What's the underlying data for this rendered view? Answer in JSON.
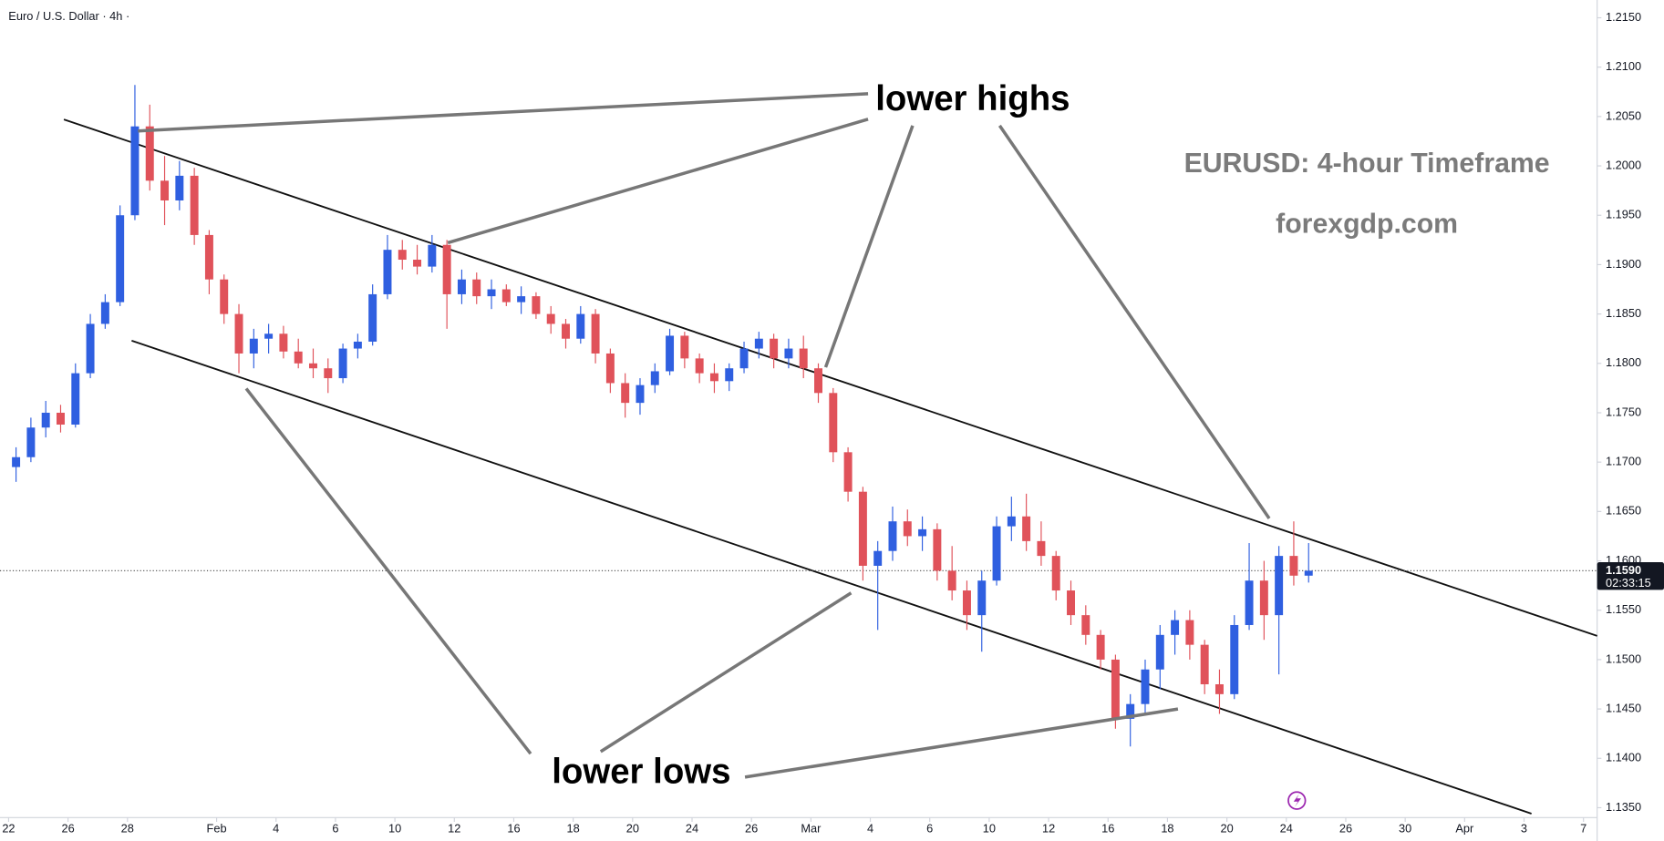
{
  "chart_data": {
    "type": "candlestick",
    "title": "Euro / U.S. Dollar · 4h ·",
    "annotations": [
      "lower highs",
      "lower lows",
      "EURUSD: 4-hour Timeframe",
      "forexgdp.com"
    ],
    "up_color": "#2f5fe0",
    "down_color": "#e0525a",
    "last_price": {
      "value": 1.159,
      "label": "1.1590"
    },
    "countdown": "02:33:15",
    "xlim": [
      -0.29,
      53.46
    ],
    "ylim": [
      1.134,
      1.2168
    ],
    "xticks": [
      {
        "value": 0,
        "label": "22"
      },
      {
        "value": 2,
        "label": "26"
      },
      {
        "value": 4,
        "label": "28"
      },
      {
        "value": 7,
        "label": "Feb"
      },
      {
        "value": 9,
        "label": "4"
      },
      {
        "value": 11,
        "label": "6"
      },
      {
        "value": 13,
        "label": "10"
      },
      {
        "value": 15,
        "label": "12"
      },
      {
        "value": 17,
        "label": "16"
      },
      {
        "value": 19,
        "label": "18"
      },
      {
        "value": 21,
        "label": "20"
      },
      {
        "value": 23,
        "label": "24"
      },
      {
        "value": 25,
        "label": "26"
      },
      {
        "value": 27,
        "label": "Mar"
      },
      {
        "value": 29,
        "label": "4"
      },
      {
        "value": 31,
        "label": "6"
      },
      {
        "value": 33,
        "label": "10"
      },
      {
        "value": 35,
        "label": "12"
      },
      {
        "value": 37,
        "label": "16"
      },
      {
        "value": 39,
        "label": "18"
      },
      {
        "value": 41,
        "label": "20"
      },
      {
        "value": 43,
        "label": "24"
      },
      {
        "value": 45,
        "label": "26"
      },
      {
        "value": 47,
        "label": "30"
      },
      {
        "value": 49,
        "label": "Apr"
      },
      {
        "value": 51,
        "label": "3"
      },
      {
        "value": 53,
        "label": "7"
      }
    ],
    "yticks": [
      {
        "value": 1.135,
        "label": "1.1350"
      },
      {
        "value": 1.14,
        "label": "1.1400"
      },
      {
        "value": 1.145,
        "label": "1.1450"
      },
      {
        "value": 1.15,
        "label": "1.1500"
      },
      {
        "value": 1.155,
        "label": "1.1550"
      },
      {
        "value": 1.16,
        "label": "1.1600"
      },
      {
        "value": 1.165,
        "label": "1.1650"
      },
      {
        "value": 1.17,
        "label": "1.1700"
      },
      {
        "value": 1.175,
        "label": "1.1750"
      },
      {
        "value": 1.18,
        "label": "1.1800"
      },
      {
        "value": 1.185,
        "label": "1.1850"
      },
      {
        "value": 1.19,
        "label": "1.1900"
      },
      {
        "value": 1.195,
        "label": "1.1950"
      },
      {
        "value": 1.2,
        "label": "1.2000"
      },
      {
        "value": 1.205,
        "label": "1.2050"
      },
      {
        "value": 1.21,
        "label": "1.2100"
      },
      {
        "value": 1.215,
        "label": "1.2150"
      }
    ],
    "trendlines": [
      {
        "x": [
          1.86,
          53.46
        ],
        "y": [
          1.2047,
          1.1524
        ]
      },
      {
        "x": [
          4.14,
          51.25
        ],
        "y": [
          1.1823,
          1.1344
        ]
      }
    ],
    "x": [
      0.25,
      0.75,
      1.25,
      1.75,
      2.25,
      2.75,
      3.25,
      3.75,
      4.25,
      4.75,
      5.25,
      5.75,
      6.25,
      6.75,
      7.25,
      7.75,
      8.25,
      8.75,
      9.25,
      9.75,
      10.25,
      10.75,
      11.25,
      11.75,
      12.25,
      12.75,
      13.25,
      13.75,
      14.25,
      14.75,
      15.25,
      15.75,
      16.25,
      16.75,
      17.25,
      17.75,
      18.25,
      18.75,
      19.25,
      19.75,
      20.25,
      20.75,
      21.25,
      21.75,
      22.25,
      22.75,
      23.25,
      23.75,
      24.25,
      24.75,
      25.25,
      25.75,
      26.25,
      26.75,
      27.25,
      27.75,
      28.25,
      28.75,
      29.25,
      29.75,
      30.25,
      30.75,
      31.25,
      31.75,
      32.25,
      32.75,
      33.25,
      33.75,
      34.25,
      34.75,
      35.25,
      35.75,
      36.25,
      36.75,
      37.25,
      37.75,
      38.25,
      38.75,
      39.25,
      39.75,
      40.25,
      40.75,
      41.25,
      41.75,
      42.25,
      42.75,
      43.25,
      43.75
    ],
    "ohlc": [
      [
        1.1695,
        1.1715,
        1.168,
        1.1705
      ],
      [
        1.1705,
        1.1745,
        1.17,
        1.1735
      ],
      [
        1.1735,
        1.1762,
        1.1725,
        1.175
      ],
      [
        1.175,
        1.1758,
        1.173,
        1.1738
      ],
      [
        1.1738,
        1.18,
        1.1735,
        1.179
      ],
      [
        1.179,
        1.185,
        1.1785,
        1.184
      ],
      [
        1.184,
        1.187,
        1.1835,
        1.1862
      ],
      [
        1.1862,
        1.196,
        1.1858,
        1.195
      ],
      [
        1.195,
        1.2082,
        1.1945,
        1.204
      ],
      [
        1.204,
        1.2062,
        1.1975,
        1.1985
      ],
      [
        1.1985,
        1.201,
        1.194,
        1.1965
      ],
      [
        1.1965,
        1.2005,
        1.1955,
        1.199
      ],
      [
        1.199,
        1.1998,
        1.192,
        1.193
      ],
      [
        1.193,
        1.1935,
        1.187,
        1.1885
      ],
      [
        1.1885,
        1.189,
        1.184,
        1.185
      ],
      [
        1.185,
        1.186,
        1.179,
        1.181
      ],
      [
        1.181,
        1.1835,
        1.1795,
        1.1825
      ],
      [
        1.1825,
        1.184,
        1.181,
        1.183
      ],
      [
        1.183,
        1.1838,
        1.1805,
        1.1812
      ],
      [
        1.1812,
        1.1825,
        1.1795,
        1.18
      ],
      [
        1.18,
        1.1815,
        1.1785,
        1.1795
      ],
      [
        1.1795,
        1.1805,
        1.177,
        1.1785
      ],
      [
        1.1785,
        1.182,
        1.178,
        1.1815
      ],
      [
        1.1815,
        1.183,
        1.1805,
        1.1822
      ],
      [
        1.1822,
        1.188,
        1.1818,
        1.187
      ],
      [
        1.187,
        1.193,
        1.1865,
        1.1915
      ],
      [
        1.1915,
        1.1925,
        1.1895,
        1.1905
      ],
      [
        1.1905,
        1.192,
        1.189,
        1.1898
      ],
      [
        1.1898,
        1.193,
        1.1892,
        1.192
      ],
      [
        1.192,
        1.1925,
        1.1835,
        1.187
      ],
      [
        1.187,
        1.1895,
        1.186,
        1.1885
      ],
      [
        1.1885,
        1.1892,
        1.186,
        1.1868
      ],
      [
        1.1868,
        1.1885,
        1.1855,
        1.1875
      ],
      [
        1.1875,
        1.188,
        1.1858,
        1.1862
      ],
      [
        1.1862,
        1.1878,
        1.185,
        1.1868
      ],
      [
        1.1868,
        1.1872,
        1.1845,
        1.185
      ],
      [
        1.185,
        1.1858,
        1.183,
        1.184
      ],
      [
        1.184,
        1.1845,
        1.1815,
        1.1825
      ],
      [
        1.1825,
        1.1858,
        1.182,
        1.185
      ],
      [
        1.185,
        1.1855,
        1.18,
        1.181
      ],
      [
        1.181,
        1.1815,
        1.177,
        1.178
      ],
      [
        1.178,
        1.179,
        1.1745,
        1.176
      ],
      [
        1.176,
        1.1785,
        1.1748,
        1.1778
      ],
      [
        1.1778,
        1.18,
        1.177,
        1.1792
      ],
      [
        1.1792,
        1.1835,
        1.1788,
        1.1828
      ],
      [
        1.1828,
        1.1832,
        1.1795,
        1.1805
      ],
      [
        1.1805,
        1.181,
        1.178,
        1.179
      ],
      [
        1.179,
        1.18,
        1.177,
        1.1782
      ],
      [
        1.1782,
        1.18,
        1.1772,
        1.1795
      ],
      [
        1.1795,
        1.1822,
        1.179,
        1.1815
      ],
      [
        1.1815,
        1.1832,
        1.1805,
        1.1825
      ],
      [
        1.1825,
        1.183,
        1.1795,
        1.1805
      ],
      [
        1.1805,
        1.1825,
        1.1795,
        1.1815
      ],
      [
        1.1815,
        1.1828,
        1.1785,
        1.1795
      ],
      [
        1.1795,
        1.18,
        1.176,
        1.177
      ],
      [
        1.177,
        1.1775,
        1.17,
        1.171
      ],
      [
        1.171,
        1.1715,
        1.166,
        1.167
      ],
      [
        1.167,
        1.1675,
        1.158,
        1.1595
      ],
      [
        1.1595,
        1.162,
        1.153,
        1.161
      ],
      [
        1.161,
        1.1655,
        1.16,
        1.164
      ],
      [
        1.164,
        1.1652,
        1.1615,
        1.1625
      ],
      [
        1.1625,
        1.1645,
        1.161,
        1.1632
      ],
      [
        1.1632,
        1.1638,
        1.158,
        1.159
      ],
      [
        1.159,
        1.1615,
        1.156,
        1.157
      ],
      [
        1.157,
        1.158,
        1.153,
        1.1545
      ],
      [
        1.1545,
        1.159,
        1.1508,
        1.158
      ],
      [
        1.158,
        1.1645,
        1.1575,
        1.1635
      ],
      [
        1.1635,
        1.1665,
        1.162,
        1.1645
      ],
      [
        1.1645,
        1.1668,
        1.161,
        1.162
      ],
      [
        1.162,
        1.164,
        1.1595,
        1.1605
      ],
      [
        1.1605,
        1.161,
        1.156,
        1.157
      ],
      [
        1.157,
        1.158,
        1.1535,
        1.1545
      ],
      [
        1.1545,
        1.1555,
        1.1515,
        1.1525
      ],
      [
        1.1525,
        1.153,
        1.149,
        1.15
      ],
      [
        1.15,
        1.1505,
        1.143,
        1.144
      ],
      [
        1.144,
        1.1465,
        1.1412,
        1.1455
      ],
      [
        1.1455,
        1.15,
        1.1445,
        1.149
      ],
      [
        1.149,
        1.1535,
        1.147,
        1.1525
      ],
      [
        1.1525,
        1.155,
        1.1505,
        1.154
      ],
      [
        1.154,
        1.155,
        1.15,
        1.1515
      ],
      [
        1.1515,
        1.152,
        1.1465,
        1.1475
      ],
      [
        1.1475,
        1.149,
        1.1445,
        1.1465
      ],
      [
        1.1465,
        1.1545,
        1.146,
        1.1535
      ],
      [
        1.1535,
        1.1618,
        1.153,
        1.158
      ],
      [
        1.158,
        1.16,
        1.152,
        1.1545
      ],
      [
        1.1545,
        1.1615,
        1.1485,
        1.1605
      ],
      [
        1.1605,
        1.164,
        1.1575,
        1.1585
      ],
      [
        1.1585,
        1.1618,
        1.1578,
        1.159
      ]
    ]
  }
}
